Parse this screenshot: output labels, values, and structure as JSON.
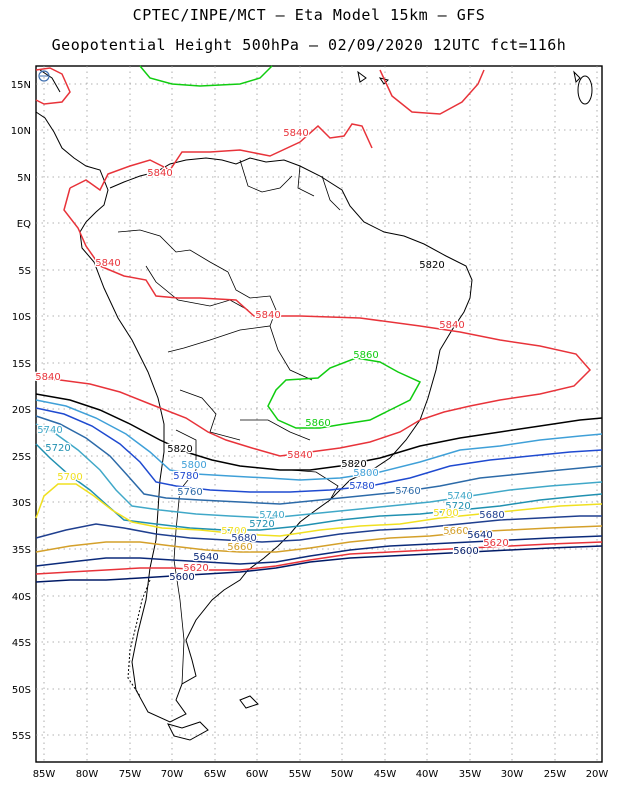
{
  "title_line1": "CPTEC/INPE/MCT –  Eta Model 15km – GFS",
  "title_line2": "Geopotential Height 500hPa – 02/09/2020 12UTC fct=116h",
  "lat_labels": [
    "15N",
    "10N",
    "5N",
    "EQ",
    "5S",
    "10S",
    "15S",
    "20S",
    "25S",
    "30S",
    "35S",
    "40S",
    "45S",
    "50S",
    "55S"
  ],
  "lon_labels": [
    "85W",
    "80W",
    "75W",
    "70W",
    "65W",
    "60W",
    "55W",
    "50W",
    "45W",
    "40W",
    "35W",
    "30W",
    "25W",
    "20W"
  ],
  "colors": {
    "c5600": "#001a66",
    "c5620": "#e8333a",
    "c5640": "#0b2a7a",
    "c5660": "#d4a02a",
    "c5680": "#1f3f8f",
    "c5700": "#f0e020",
    "c5720": "#2090b0",
    "c5740": "#40a8c8",
    "c5760": "#2c6aa8",
    "c5780": "#1f4ad0",
    "c5800": "#3fa0d8",
    "c5820": "#000000",
    "c5840": "#e8333a",
    "c5860": "#10cc10"
  },
  "contour_labels": [
    {
      "text": "5840",
      "color": "#e8333a"
    },
    {
      "text": "5840",
      "color": "#e8333a"
    },
    {
      "text": "5840",
      "color": "#e8333a"
    },
    {
      "text": "5840",
      "color": "#e8333a"
    },
    {
      "text": "5840",
      "color": "#e8333a"
    },
    {
      "text": "5840",
      "color": "#e8333a"
    },
    {
      "text": "5840",
      "color": "#e8333a"
    },
    {
      "text": "5820",
      "color": "#000000"
    },
    {
      "text": "5860",
      "color": "#10cc10"
    },
    {
      "text": "5860",
      "color": "#10cc10"
    },
    {
      "text": "5740",
      "color": "#40a8c8"
    },
    {
      "text": "5720",
      "color": "#2090b0"
    },
    {
      "text": "5700",
      "color": "#f0e020"
    },
    {
      "text": "5820",
      "color": "#000000"
    },
    {
      "text": "5820",
      "color": "#000000"
    },
    {
      "text": "5800",
      "color": "#3fa0d8"
    },
    {
      "text": "5780",
      "color": "#1f4ad0"
    },
    {
      "text": "5760",
      "color": "#2c6aa8"
    },
    {
      "text": "5800",
      "color": "#3fa0d8"
    },
    {
      "text": "5780",
      "color": "#1f4ad0"
    },
    {
      "text": "5760",
      "color": "#2c6aa8"
    },
    {
      "text": "5740",
      "color": "#40a8c8"
    },
    {
      "text": "5740",
      "color": "#40a8c8"
    },
    {
      "text": "5720",
      "color": "#2090b0"
    },
    {
      "text": "5720",
      "color": "#2090b0"
    },
    {
      "text": "5700",
      "color": "#f0e020"
    },
    {
      "text": "5700",
      "color": "#f0e020"
    },
    {
      "text": "5680",
      "color": "#1f3f8f"
    },
    {
      "text": "5680",
      "color": "#1f3f8f"
    },
    {
      "text": "5660",
      "color": "#d4a02a"
    },
    {
      "text": "5660",
      "color": "#d4a02a"
    },
    {
      "text": "5640",
      "color": "#0b2a7a"
    },
    {
      "text": "5640",
      "color": "#0b2a7a"
    },
    {
      "text": "5620",
      "color": "#e8333a"
    },
    {
      "text": "5620",
      "color": "#e8333a"
    },
    {
      "text": "5600",
      "color": "#001a66"
    },
    {
      "text": "5600",
      "color": "#001a66"
    }
  ]
}
